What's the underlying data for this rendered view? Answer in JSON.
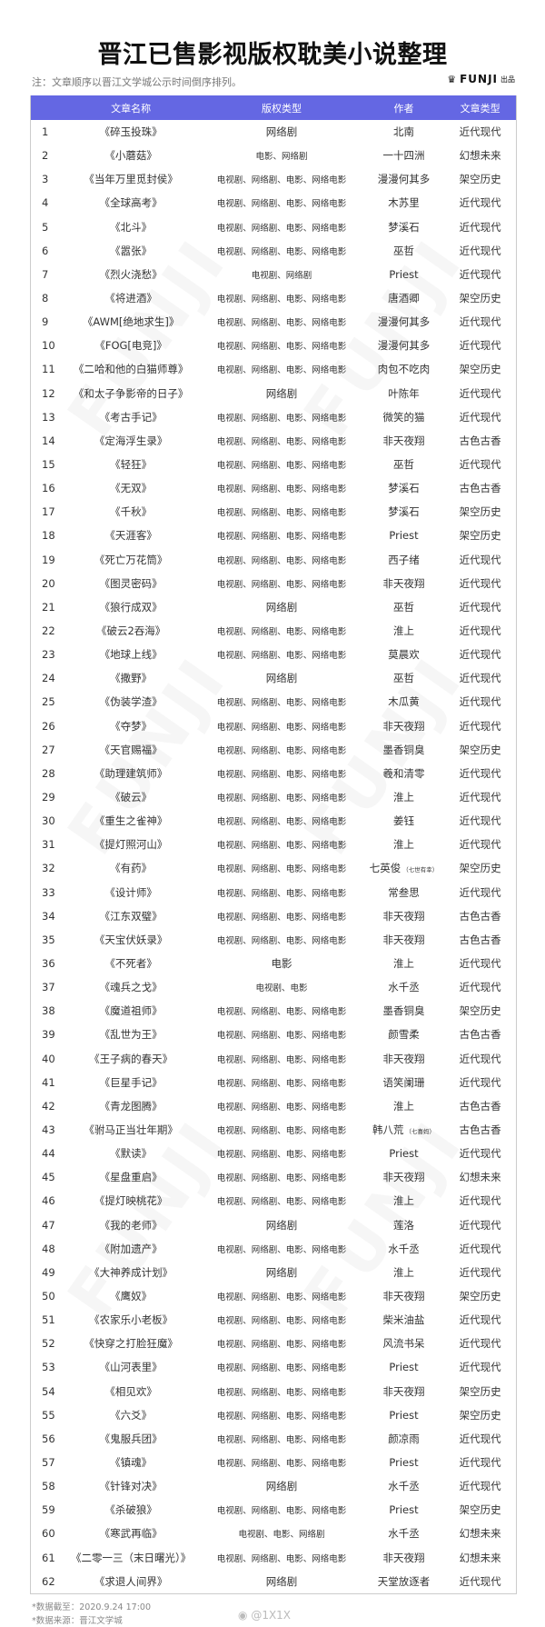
{
  "title": "晋江已售影视版权耽美小说整理",
  "note": "注：文章顺序以晋江文学城公示时间倒序排列。",
  "brand": {
    "name": "FUNJI",
    "suffix": "出品",
    "icon": "crown-icon"
  },
  "colors": {
    "header_bg": "#6467e3",
    "header_text": "#ffffff"
  },
  "table": {
    "headers": [
      "",
      "文章名称",
      "版权类型",
      "作者",
      "文章类型"
    ],
    "rows": [
      [
        "1",
        "《碎玉投珠》",
        "网络剧",
        "北南",
        "",
        "近代现代"
      ],
      [
        "2",
        "《小蘑菇》",
        "电影、网络剧",
        "一十四洲",
        "",
        "幻想未来"
      ],
      [
        "3",
        "《当年万里觅封侯》",
        "电视剧、网络剧、电影、网络电影",
        "漫漫何其多",
        "",
        "架空历史"
      ],
      [
        "4",
        "《全球高考》",
        "电视剧、网络剧、电影、网络电影",
        "木苏里",
        "",
        "近代现代"
      ],
      [
        "5",
        "《北斗》",
        "电视剧、网络剧、电影、网络电影",
        "梦溪石",
        "",
        "近代现代"
      ],
      [
        "6",
        "《嚣张》",
        "电视剧、网络剧、电影、网络电影",
        "巫哲",
        "",
        "近代现代"
      ],
      [
        "7",
        "《烈火浇愁》",
        "电视剧、网络剧",
        "Priest",
        "",
        "近代现代"
      ],
      [
        "8",
        "《将进酒》",
        "电视剧、网络剧、电影、网络电影",
        "唐酒卿",
        "",
        "架空历史"
      ],
      [
        "9",
        "《AWM[绝地求生]》",
        "电视剧、网络剧、电影、网络电影",
        "漫漫何其多",
        "",
        "近代现代"
      ],
      [
        "10",
        "《FOG[电竞]》",
        "电视剧、网络剧、电影、网络电影",
        "漫漫何其多",
        "",
        "近代现代"
      ],
      [
        "11",
        "《二哈和他的白猫师尊》",
        "电视剧、网络剧、电影、网络电影",
        "肉包不吃肉",
        "",
        "架空历史"
      ],
      [
        "12",
        "《和太子争影帝的日子》",
        "网络剧",
        "叶陈年",
        "",
        "近代现代"
      ],
      [
        "13",
        "《考古手记》",
        "电视剧、网络剧、电影、网络电影",
        "微笑的猫",
        "",
        "近代现代"
      ],
      [
        "14",
        "《定海浮生录》",
        "电视剧、网络剧、电影、网络电影",
        "非天夜翔",
        "",
        "古色古香"
      ],
      [
        "15",
        "《轻狂》",
        "电视剧、网络剧、电影、网络电影",
        "巫哲",
        "",
        "近代现代"
      ],
      [
        "16",
        "《无双》",
        "电视剧、网络剧、电影、网络电影",
        "梦溪石",
        "",
        "古色古香"
      ],
      [
        "17",
        "《千秋》",
        "电视剧、网络剧、电影、网络电影",
        "梦溪石",
        "",
        "架空历史"
      ],
      [
        "18",
        "《天涯客》",
        "电视剧、网络剧、电影、网络电影",
        "Priest",
        "",
        "架空历史"
      ],
      [
        "19",
        "《死亡万花筒》",
        "电视剧、网络剧、电影、网络电影",
        "西子绪",
        "",
        "近代现代"
      ],
      [
        "20",
        "《图灵密码》",
        "电视剧、网络剧、电影、网络电影",
        "非天夜翔",
        "",
        "近代现代"
      ],
      [
        "21",
        "《狼行成双》",
        "网络剧",
        "巫哲",
        "",
        "近代现代"
      ],
      [
        "22",
        "《破云2吞海》",
        "电视剧、网络剧、电影、网络电影",
        "淮上",
        "",
        "近代现代"
      ],
      [
        "23",
        "《地球上线》",
        "电视剧、网络剧、电影、网络电影",
        "莫晨欢",
        "",
        "近代现代"
      ],
      [
        "24",
        "《撒野》",
        "网络剧",
        "巫哲",
        "",
        "近代现代"
      ],
      [
        "25",
        "《伪装学渣》",
        "电视剧、网络剧、电影、网络电影",
        "木瓜黄",
        "",
        "近代现代"
      ],
      [
        "26",
        "《夺梦》",
        "电视剧、网络剧、电影、网络电影",
        "非天夜翔",
        "",
        "近代现代"
      ],
      [
        "27",
        "《天官赐福》",
        "电视剧、网络剧、电影、网络电影",
        "墨香铜臭",
        "",
        "架空历史"
      ],
      [
        "28",
        "《助理建筑师》",
        "电视剧、网络剧、电影、网络电影",
        "羲和清零",
        "",
        "近代现代"
      ],
      [
        "29",
        "《破云》",
        "电视剧、网络剧、电影、网络电影",
        "淮上",
        "",
        "近代现代"
      ],
      [
        "30",
        "《重生之雀神》",
        "电视剧、网络剧、电影、网络电影",
        "姜钰",
        "",
        "近代现代"
      ],
      [
        "31",
        "《提灯照河山》",
        "电视剧、网络剧、电影、网络电影",
        "淮上",
        "",
        "近代现代"
      ],
      [
        "32",
        "《有药》",
        "电视剧、网络剧、电影、网络电影",
        "七英俊",
        "（七世有幸）",
        "架空历史"
      ],
      [
        "33",
        "《设计师》",
        "电视剧、网络剧、电影、网络电影",
        "常叁思",
        "",
        "近代现代"
      ],
      [
        "34",
        "《江东双璧》",
        "电视剧、网络剧、电影、网络电影",
        "非天夜翔",
        "",
        "古色古香"
      ],
      [
        "35",
        "《天宝伏妖录》",
        "电视剧、网络剧、电影、网络电影",
        "非天夜翔",
        "",
        "古色古香"
      ],
      [
        "36",
        "《不死者》",
        "电影",
        "淮上",
        "",
        "近代现代"
      ],
      [
        "37",
        "《魂兵之戈》",
        "电视剧、电影",
        "水千丞",
        "",
        "近代现代"
      ],
      [
        "38",
        "《魔道祖师》",
        "电视剧、网络剧、电影、网络电影",
        "墨香铜臭",
        "",
        "架空历史"
      ],
      [
        "39",
        "《乱世为王》",
        "电视剧、网络剧、电影、网络电影",
        "颜雪柔",
        "",
        "古色古香"
      ],
      [
        "40",
        "《王子病的春天》",
        "电视剧、网络剧、电影、网络电影",
        "非天夜翔",
        "",
        "近代现代"
      ],
      [
        "41",
        "《巨星手记》",
        "电视剧、网络剧、电影、网络电影",
        "语笑阑珊",
        "",
        "近代现代"
      ],
      [
        "42",
        "《青龙图腾》",
        "电视剧、网络剧、电影、网络电影",
        "淮上",
        "",
        "古色古香"
      ],
      [
        "43",
        "《驸马正当壮年期》",
        "电视剧、网络剧、电影、网络电影",
        "韩八荒",
        "（七喜妈）",
        "古色古香"
      ],
      [
        "44",
        "《默读》",
        "电视剧、网络剧、电影、网络电影",
        "Priest",
        "",
        "近代现代"
      ],
      [
        "45",
        "《星盘重启》",
        "电视剧、网络剧、电影、网络电影",
        "非天夜翔",
        "",
        "幻想未来"
      ],
      [
        "46",
        "《提灯映桃花》",
        "电视剧、网络剧、电影、网络电影",
        "淮上",
        "",
        "近代现代"
      ],
      [
        "47",
        "《我的老师》",
        "网络剧",
        "莲洛",
        "",
        "近代现代"
      ],
      [
        "48",
        "《附加遗产》",
        "电视剧、网络剧、电影、网络电影",
        "水千丞",
        "",
        "近代现代"
      ],
      [
        "49",
        "《大神养成计划》",
        "网络剧",
        "淮上",
        "",
        "近代现代"
      ],
      [
        "50",
        "《鹰奴》",
        "电视剧、网络剧、电影、网络电影",
        "非天夜翔",
        "",
        "架空历史"
      ],
      [
        "51",
        "《农家乐小老板》",
        "电视剧、网络剧、电影、网络电影",
        "柴米油盐",
        "",
        "近代现代"
      ],
      [
        "52",
        "《快穿之打脸狂魔》",
        "电视剧、网络剧、电影、网络电影",
        "风流书呆",
        "",
        "近代现代"
      ],
      [
        "53",
        "《山河表里》",
        "电视剧、网络剧、电影、网络电影",
        "Priest",
        "",
        "近代现代"
      ],
      [
        "54",
        "《相见欢》",
        "电视剧、网络剧、电影、网络电影",
        "非天夜翔",
        "",
        "架空历史"
      ],
      [
        "55",
        "《六爻》",
        "电视剧、网络剧、电影、网络电影",
        "Priest",
        "",
        "架空历史"
      ],
      [
        "56",
        "《鬼服兵团》",
        "电视剧、网络剧、电影、网络电影",
        "颜凉雨",
        "",
        "近代现代"
      ],
      [
        "57",
        "《镇魂》",
        "电视剧、网络剧、电影、网络电影",
        "Priest",
        "",
        "近代现代"
      ],
      [
        "58",
        "《针锋对决》",
        "网络剧",
        "水千丞",
        "",
        "近代现代"
      ],
      [
        "59",
        "《杀破狼》",
        "电视剧、网络剧、电影、网络电影",
        "Priest",
        "",
        "架空历史"
      ],
      [
        "60",
        "《寒武再临》",
        "电视剧、电影、网络剧",
        "水千丞",
        "",
        "幻想未来"
      ],
      [
        "61",
        "《二零一三（末日曙光）》",
        "电视剧、网络剧、电影、网络电影",
        "非天夜翔",
        "",
        "幻想未来"
      ],
      [
        "62",
        "《求退人间界》",
        "网络剧",
        "天堂放逐者",
        "",
        "近代现代"
      ]
    ]
  },
  "footer": {
    "date": "*数据截至：2020.9.24 17:00",
    "source": "*数据来源：晋江文学城",
    "weibo": "@1X1X"
  },
  "watermark": "FUNJI"
}
